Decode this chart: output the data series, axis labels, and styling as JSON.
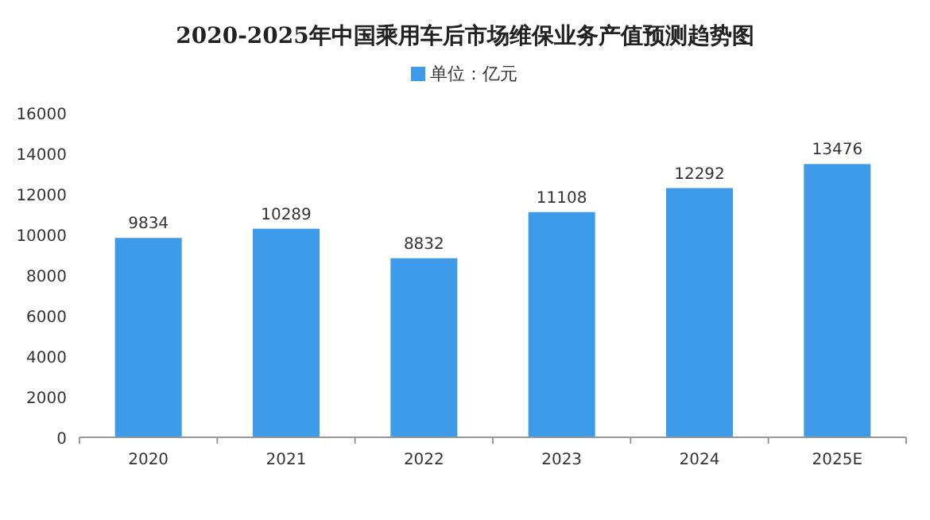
{
  "chart_data": {
    "type": "bar",
    "title": "2020-2025年中国乘用车后市场维保业务产值预测趋势图",
    "categories": [
      "2020",
      "2021",
      "2022",
      "2023",
      "2024",
      "2025E"
    ],
    "series": [
      {
        "name": "单位：亿元",
        "color": "#3d9be9",
        "values": [
          9834,
          10289,
          8832,
          11108,
          12292,
          13476
        ]
      }
    ],
    "ylim": [
      0,
      16000
    ],
    "yticks": [
      0,
      2000,
      4000,
      6000,
      8000,
      10000,
      12000,
      14000,
      16000
    ],
    "data_labels": true,
    "legend": "top",
    "grid": false
  }
}
